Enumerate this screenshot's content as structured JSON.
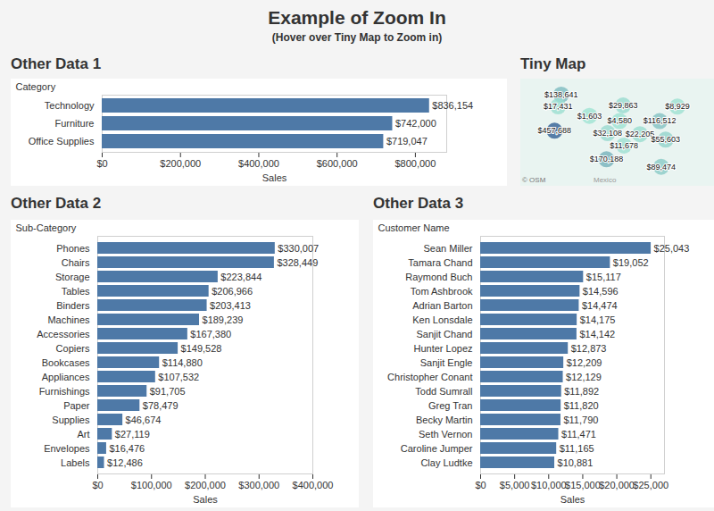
{
  "title": "Example of Zoom In",
  "subtitle": "(Hover over Tiny Map to Zoom in)",
  "chart_data": [
    {
      "type": "bar",
      "title": "Other Data 1",
      "orientation": "horizontal",
      "data_labels": true,
      "color": "#4e79a7",
      "y_label": "Category",
      "x_label": "Sales",
      "categories": [
        "Technology",
        "Furniture",
        "Office Supplies"
      ],
      "values": [
        836154,
        742000,
        719047
      ],
      "value_labels": [
        "$836,154",
        "$742,000",
        "$719,047"
      ],
      "xlim": [
        0,
        880000
      ],
      "xticks": [
        {
          "value": 0,
          "label": "$0"
        },
        {
          "value": 200000,
          "label": "$200,000"
        },
        {
          "value": 400000,
          "label": "$400,000"
        },
        {
          "value": 600000,
          "label": "$600,000"
        },
        {
          "value": 800000,
          "label": "$800,000"
        }
      ]
    },
    {
      "type": "map",
      "title": "Tiny Map",
      "data_labels": true,
      "values": [
        138641,
        17431,
        457688,
        29863,
        1603,
        4580,
        32108,
        22205,
        11678,
        170188,
        116512,
        55603,
        89474,
        8929
      ],
      "value_labels": [
        "$138,641",
        "$17,431",
        "$457,688",
        "$29,863",
        "$1,603",
        "$4,580",
        "$32,108",
        "$22,205",
        "$11,678",
        "$170,188",
        "$116,512",
        "$55,603",
        "$89,474",
        "$8,929"
      ],
      "lon": [
        -120.5,
        -120.5,
        -119.5,
        -94,
        -107.5,
        -95.5,
        -100,
        -88,
        -94,
        -100,
        -80,
        -79,
        -82,
        -72
      ],
      "lat": [
        47.5,
        44,
        37,
        46.5,
        43,
        42,
        38.5,
        38,
        35,
        31,
        41,
        35.5,
        28,
        44
      ],
      "annotations": [
        "© OSM",
        "Mexico"
      ]
    },
    {
      "type": "bar",
      "title": "Other Data 2",
      "orientation": "horizontal",
      "data_labels": true,
      "color": "#4e79a7",
      "y_label": "Sub-Category",
      "x_label": "Sales",
      "categories": [
        "Phones",
        "Chairs",
        "Storage",
        "Tables",
        "Binders",
        "Machines",
        "Accessories",
        "Copiers",
        "Bookcases",
        "Appliances",
        "Furnishings",
        "Paper",
        "Supplies",
        "Art",
        "Envelopes",
        "Labels"
      ],
      "values": [
        330007,
        328449,
        223844,
        206966,
        203413,
        189239,
        167380,
        149528,
        114880,
        107532,
        91705,
        78479,
        46674,
        27119,
        16476,
        12486
      ],
      "value_labels": [
        "$330,007",
        "$328,449",
        "$223,844",
        "$206,966",
        "$203,413",
        "$189,239",
        "$167,380",
        "$149,528",
        "$114,880",
        "$107,532",
        "$91,705",
        "$78,479",
        "$46,674",
        "$27,119",
        "$16,476",
        "$12,486"
      ],
      "xlim": [
        0,
        400000
      ],
      "xticks": [
        {
          "value": 0,
          "label": "$0"
        },
        {
          "value": 100000,
          "label": "$100,000"
        },
        {
          "value": 200000,
          "label": "$200,000"
        },
        {
          "value": 300000,
          "label": "$300,000"
        },
        {
          "value": 400000,
          "label": "$400,000"
        }
      ]
    },
    {
      "type": "bar",
      "title": "Other Data 3",
      "orientation": "horizontal",
      "data_labels": true,
      "color": "#4e79a7",
      "y_label": "Customer Name",
      "x_label": "Sales",
      "categories": [
        "Sean Miller",
        "Tamara Chand",
        "Raymond Buch",
        "Tom Ashbrook",
        "Adrian Barton",
        "Ken Lonsdale",
        "Sanjit Chand",
        "Hunter Lopez",
        "Sanjit Engle",
        "Christopher Conant",
        "Todd Sumrall",
        "Greg Tran",
        "Becky Martin",
        "Seth Vernon",
        "Caroline Jumper",
        "Clay Ludtke"
      ],
      "values": [
        25043,
        19052,
        15117,
        14596,
        14474,
        14175,
        14142,
        12873,
        12209,
        12129,
        11892,
        11820,
        11790,
        11471,
        11165,
        10881
      ],
      "value_labels": [
        "$25,043",
        "$19,052",
        "$15,117",
        "$14,596",
        "$14,474",
        "$14,175",
        "$14,142",
        "$12,873",
        "$12,209",
        "$12,129",
        "$11,892",
        "$11,820",
        "$11,790",
        "$11,471",
        "$11,165",
        "$10,881"
      ],
      "xlim": [
        0,
        27000
      ],
      "xticks": [
        {
          "value": 0,
          "label": "$0"
        },
        {
          "value": 5000,
          "label": "$5,000"
        },
        {
          "value": 10000,
          "label": "$10,000"
        },
        {
          "value": 15000,
          "label": "$15,000"
        },
        {
          "value": 20000,
          "label": "$20,000"
        },
        {
          "value": 25000,
          "label": "$25,000"
        }
      ]
    }
  ]
}
